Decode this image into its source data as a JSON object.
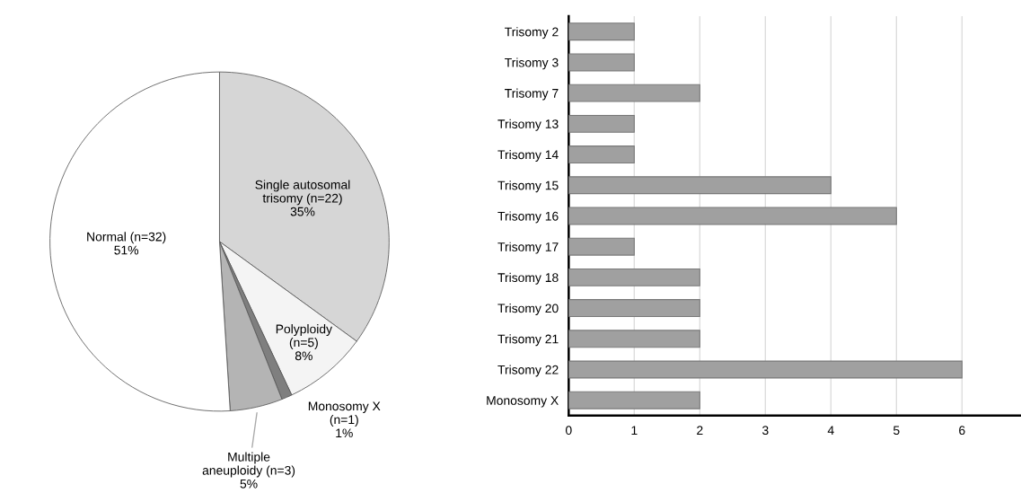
{
  "chart_data": [
    {
      "type": "pie",
      "categories": [
        "Single autosomal\ntrisomy (n=22)",
        "Polyploidy\n(n=5)",
        "Monosomy X\n(n=1)",
        "Multiple\naneuploidy (n=3)",
        "Normal (n=32)"
      ],
      "values": [
        35,
        8,
        1,
        5,
        51
      ],
      "value_labels": [
        "35%",
        "8%",
        "1%",
        "5%",
        "51%"
      ],
      "colors": [
        "#d6d6d6",
        "#f4f4f4",
        "#7f7f7f",
        "#b4b4b4",
        "#ffffff"
      ]
    },
    {
      "type": "bar",
      "orientation": "horizontal",
      "categories": [
        "Trisomy 2",
        "Trisomy 3",
        "Trisomy 7",
        "Trisomy 13",
        "Trisomy 14",
        "Trisomy 15",
        "Trisomy 16",
        "Trisomy 17",
        "Trisomy 18",
        "Trisomy 20",
        "Trisomy 21",
        "Trisomy 22",
        "Monosomy X"
      ],
      "values": [
        1,
        1,
        2,
        1,
        1,
        4,
        5,
        1,
        2,
        2,
        2,
        6,
        2
      ],
      "color": "#a0a0a0",
      "xlim": [
        0,
        6.9
      ],
      "xticks": [
        0,
        1,
        2,
        3,
        4,
        5,
        6
      ],
      "grid": "x",
      "legend": false
    }
  ]
}
